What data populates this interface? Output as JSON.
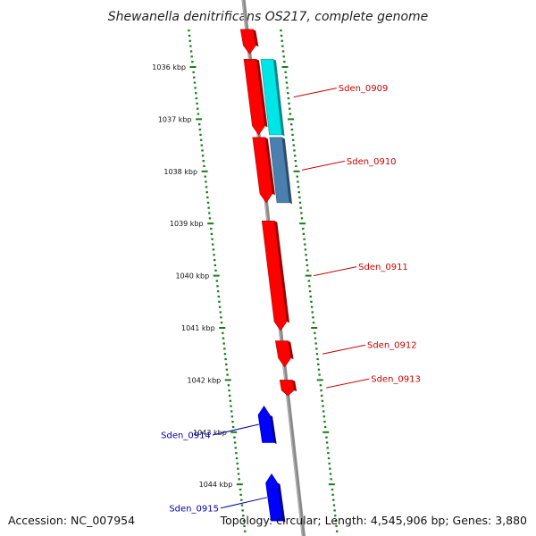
{
  "title": "Shewanella denitrificans OS217, complete genome",
  "footer": {
    "accession": "Accession: NC_007954",
    "summary": "Topology: circular; Length: 4,545,906 bp; Genes: 3,880"
  },
  "colors": {
    "backbone": "#8a8a8a",
    "tick": "#1a7a1a",
    "label_forward": "#cc0000",
    "label_reverse": "#0000aa",
    "cds_forward": "#ff0000",
    "cds_reverse": "#0000ff",
    "rna_1": "#00e5e5",
    "rna_2": "#4a7fb0"
  },
  "scale": {
    "labels": [
      "1036 kbp",
      "1037 kbp",
      "1038 kbp",
      "1039 kbp",
      "1040 kbp",
      "1041 kbp",
      "1042 kbp",
      "1043 kbp",
      "1044 kbp"
    ]
  },
  "features": [
    {
      "name": "",
      "type": "cds",
      "strand": "+",
      "start_kbp": 1035.28,
      "end_kbp": 1035.75,
      "arrow": true
    },
    {
      "name": "",
      "type": "cds",
      "strand": "+",
      "start_kbp": 1035.85,
      "end_kbp": 1037.3,
      "arrow": true
    },
    {
      "name": "",
      "type": "cds",
      "strand": "+",
      "start_kbp": 1037.35,
      "end_kbp": 1038.6,
      "arrow": true
    },
    {
      "name": "Sden_0909",
      "type": "rna",
      "strand": "+",
      "start_kbp": 1035.85,
      "end_kbp": 1037.3,
      "arrow": false,
      "color_key": "rna_1"
    },
    {
      "name": "Sden_0910",
      "type": "rna",
      "strand": "+",
      "start_kbp": 1037.35,
      "end_kbp": 1038.6,
      "arrow": false,
      "color_key": "rna_2"
    },
    {
      "name": "Sden_0911",
      "type": "cds",
      "strand": "+",
      "start_kbp": 1038.95,
      "end_kbp": 1041.05,
      "arrow": true
    },
    {
      "name": "Sden_0912",
      "type": "cds",
      "strand": "+",
      "start_kbp": 1041.25,
      "end_kbp": 1041.75,
      "arrow": true
    },
    {
      "name": "Sden_0913",
      "type": "cds",
      "strand": "+",
      "start_kbp": 1042.0,
      "end_kbp": 1042.3,
      "arrow": true
    },
    {
      "name": "Sden_0914",
      "type": "cds",
      "strand": "-",
      "start_kbp": 1042.5,
      "end_kbp": 1043.2,
      "arrow": true
    },
    {
      "name": "Sden_0915",
      "type": "cds",
      "strand": "-",
      "start_kbp": 1043.8,
      "end_kbp": 1044.7,
      "arrow": true
    }
  ]
}
